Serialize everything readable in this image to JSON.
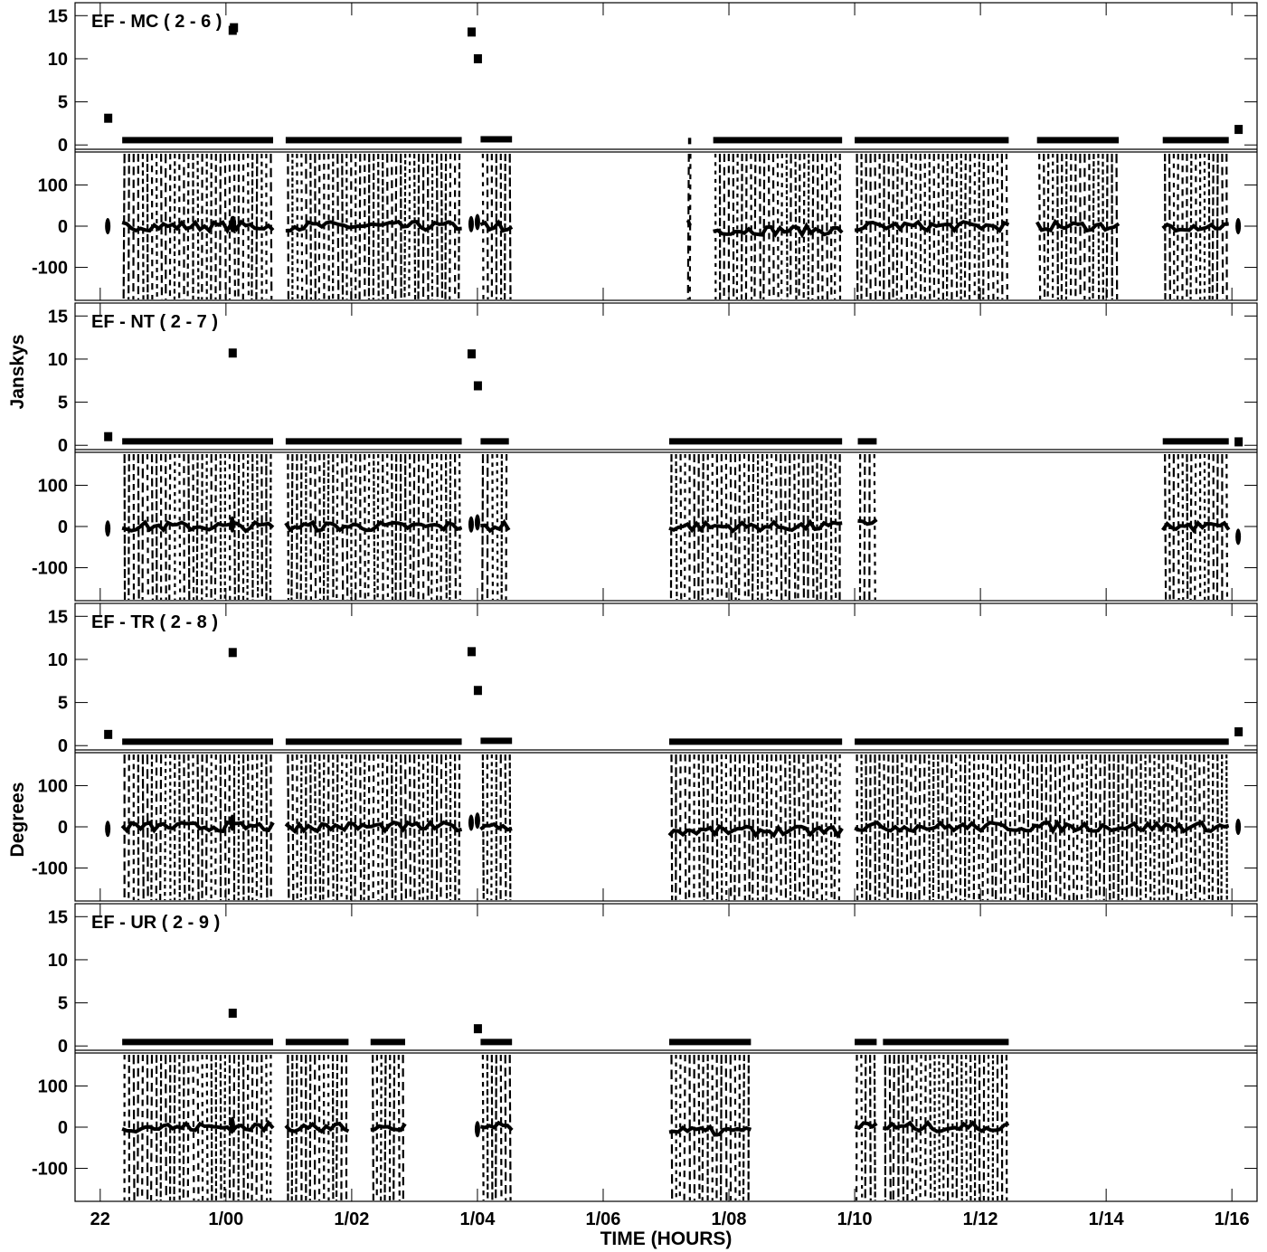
{
  "chart_data": {
    "type": "scatter",
    "xlabel": "TIME (HOURS)",
    "ylabel_amplitude": "Janskys",
    "ylabel_phase": "Degrees",
    "x_range_hours": [
      21.6,
      40.4
    ],
    "x_ticks": [
      {
        "label": "22",
        "hour": 22
      },
      {
        "label": "1/00",
        "hour": 24
      },
      {
        "label": "1/02",
        "hour": 26
      },
      {
        "label": "1/04",
        "hour": 28
      },
      {
        "label": "1/06",
        "hour": 30
      },
      {
        "label": "1/08",
        "hour": 32
      },
      {
        "label": "1/10",
        "hour": 34
      },
      {
        "label": "1/12",
        "hour": 36
      },
      {
        "label": "1/14",
        "hour": 38
      },
      {
        "label": "1/16",
        "hour": 40
      }
    ],
    "amplitude_axis": {
      "ylim": [
        -0.5,
        16.5
      ],
      "ticks": [
        0,
        5,
        10,
        15
      ]
    },
    "phase_axis": {
      "ylim": [
        -180,
        180
      ],
      "ticks": [
        -100,
        0,
        100
      ],
      "tick_labels": [
        "-100",
        "0",
        "100"
      ]
    },
    "grid": false,
    "panels": [
      {
        "name": "EF - MC ( 2 - 6 )",
        "segments": [
          {
            "start": 22.35,
            "end": 24.75,
            "amp": 0.4,
            "phase": 0
          },
          {
            "start": 24.95,
            "end": 27.75,
            "amp": 0.4,
            "phase": 0
          },
          {
            "start": 28.05,
            "end": 28.55,
            "amp": 0.5,
            "phase": 0
          },
          {
            "start": 31.35,
            "end": 31.4,
            "amp": 0.3,
            "phase": 10
          },
          {
            "start": 31.75,
            "end": 33.8,
            "amp": 0.4,
            "phase": -10
          },
          {
            "start": 34.0,
            "end": 36.45,
            "amp": 0.4,
            "phase": 0
          },
          {
            "start": 36.9,
            "end": 38.2,
            "amp": 0.4,
            "phase": 0
          },
          {
            "start": 38.9,
            "end": 39.95,
            "amp": 0.4,
            "phase": 0
          }
        ],
        "points": [
          {
            "hour": 22.12,
            "amp": 3.1,
            "phase": 0
          },
          {
            "hour": 24.1,
            "amp": 13.3,
            "phase": 5
          },
          {
            "hour": 24.12,
            "amp": 13.6,
            "phase": 5
          },
          {
            "hour": 27.9,
            "amp": 13.1,
            "phase": 5
          },
          {
            "hour": 28.0,
            "amp": 10.0,
            "phase": 10
          },
          {
            "hour": 40.1,
            "amp": 1.8,
            "phase": 0
          }
        ]
      },
      {
        "name": "EF - NT ( 2 - 7 )",
        "segments": [
          {
            "start": 22.35,
            "end": 24.75,
            "amp": 0.3,
            "phase": 0
          },
          {
            "start": 24.95,
            "end": 27.75,
            "amp": 0.3,
            "phase": 0
          },
          {
            "start": 28.05,
            "end": 28.5,
            "amp": 0.3,
            "phase": 0
          },
          {
            "start": 31.05,
            "end": 33.8,
            "amp": 0.3,
            "phase": 0
          },
          {
            "start": 34.05,
            "end": 34.35,
            "amp": 0.3,
            "phase": 10
          },
          {
            "start": 38.9,
            "end": 39.95,
            "amp": 0.3,
            "phase": 0
          }
        ],
        "points": [
          {
            "hour": 22.12,
            "amp": 1.0,
            "phase": -5
          },
          {
            "hour": 24.1,
            "amp": 10.7,
            "phase": 5
          },
          {
            "hour": 27.9,
            "amp": 10.6,
            "phase": 5
          },
          {
            "hour": 28.0,
            "amp": 6.9,
            "phase": 10
          },
          {
            "hour": 40.1,
            "amp": 0.4,
            "phase": -25
          }
        ]
      },
      {
        "name": "EF - TR ( 2 - 8 )",
        "segments": [
          {
            "start": 22.35,
            "end": 24.75,
            "amp": 0.3,
            "phase": 0
          },
          {
            "start": 24.95,
            "end": 27.75,
            "amp": 0.3,
            "phase": 0
          },
          {
            "start": 28.05,
            "end": 28.55,
            "amp": 0.4,
            "phase": 0
          },
          {
            "start": 31.05,
            "end": 33.8,
            "amp": 0.3,
            "phase": -10
          },
          {
            "start": 34.0,
            "end": 39.95,
            "amp": 0.3,
            "phase": 0
          }
        ],
        "points": [
          {
            "hour": 22.12,
            "amp": 1.3,
            "phase": -5
          },
          {
            "hour": 24.1,
            "amp": 10.8,
            "phase": 10
          },
          {
            "hour": 27.9,
            "amp": 10.9,
            "phase": 10
          },
          {
            "hour": 28.0,
            "amp": 6.4,
            "phase": 15
          },
          {
            "hour": 40.1,
            "amp": 1.6,
            "phase": 0
          }
        ]
      },
      {
        "name": "EF - UR ( 2 - 9 )",
        "segments": [
          {
            "start": 22.35,
            "end": 24.75,
            "amp": 0.3,
            "phase": 0
          },
          {
            "start": 24.95,
            "end": 25.95,
            "amp": 0.3,
            "phase": 0
          },
          {
            "start": 26.3,
            "end": 26.85,
            "amp": 0.3,
            "phase": 0
          },
          {
            "start": 28.05,
            "end": 28.55,
            "amp": 0.3,
            "phase": 0
          },
          {
            "start": 31.05,
            "end": 32.35,
            "amp": 0.3,
            "phase": -10
          },
          {
            "start": 34.0,
            "end": 34.35,
            "amp": 0.3,
            "phase": 0
          },
          {
            "start": 34.45,
            "end": 36.45,
            "amp": 0.3,
            "phase": 0
          }
        ],
        "points": [
          {
            "hour": 24.1,
            "amp": 3.8,
            "phase": 5
          },
          {
            "hour": 28.0,
            "amp": 2.0,
            "phase": -5
          }
        ]
      }
    ]
  }
}
